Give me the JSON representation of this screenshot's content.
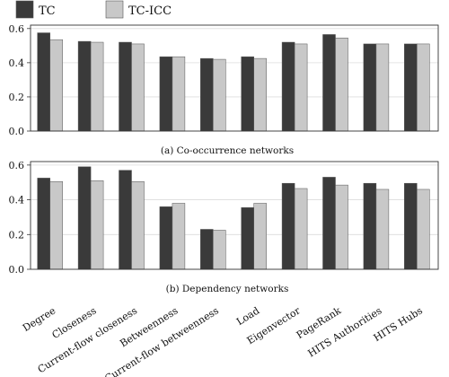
{
  "legend": {
    "items": [
      {
        "label": "TC",
        "color": "#3a3a3a"
      },
      {
        "label": "TC-ICC",
        "color": "#c8c8c8"
      }
    ]
  },
  "chart_data": [
    {
      "type": "bar",
      "title": "(a) Co-occurrence networks",
      "categories": [
        "Degree",
        "Closeness",
        "Current-flow closeness",
        "Betweenness",
        "Current-flow betweenness",
        "Load",
        "Eigenvector",
        "PageRank",
        "HITS Authorities",
        "HITS Hubs"
      ],
      "series": [
        {
          "name": "TC",
          "color": "#3a3a3a",
          "values": [
            0.575,
            0.525,
            0.52,
            0.435,
            0.425,
            0.435,
            0.52,
            0.565,
            0.51,
            0.51
          ]
        },
        {
          "name": "TC-ICC",
          "color": "#c8c8c8",
          "values": [
            0.535,
            0.52,
            0.51,
            0.435,
            0.42,
            0.425,
            0.51,
            0.545,
            0.51,
            0.51
          ]
        }
      ],
      "yticks": [
        "0.0",
        "0.2",
        "0.4",
        "0.6"
      ],
      "ylim": [
        0,
        0.62
      ],
      "grid": true
    },
    {
      "type": "bar",
      "title": "(b) Dependency networks",
      "categories": [
        "Degree",
        "Closeness",
        "Current-flow closeness",
        "Betweenness",
        "Current-flow betweenness",
        "Load",
        "Eigenvector",
        "PageRank",
        "HITS Authorities",
        "HITS Hubs"
      ],
      "series": [
        {
          "name": "TC",
          "color": "#3a3a3a",
          "values": [
            0.525,
            0.59,
            0.57,
            0.36,
            0.23,
            0.355,
            0.495,
            0.53,
            0.495,
            0.495
          ]
        },
        {
          "name": "TC-ICC",
          "color": "#c8c8c8",
          "values": [
            0.505,
            0.51,
            0.505,
            0.38,
            0.225,
            0.38,
            0.465,
            0.485,
            0.46,
            0.46
          ]
        }
      ],
      "yticks": [
        "0.0",
        "0.2",
        "0.4",
        "0.6"
      ],
      "ylim": [
        0,
        0.62
      ],
      "grid": true
    }
  ]
}
